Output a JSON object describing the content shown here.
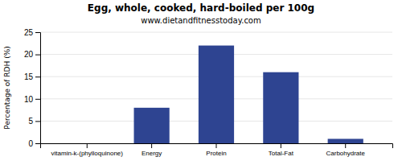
{
  "chart_data": {
    "type": "bar",
    "title": "Egg, whole, cooked, hard-boiled per 100g",
    "subtitle": "www.dietandfitnesstoday.com",
    "categories": [
      "vitamin-k-(phylloquinone)",
      "Energy",
      "Protein",
      "Total-Fat",
      "Carbohydrate"
    ],
    "values": [
      0,
      8,
      22,
      16,
      1
    ],
    "color": "#2e4491",
    "ylabel": "Percentage of RDH (%)",
    "ylim": [
      0,
      25
    ],
    "yticks": [
      0,
      5,
      10,
      15,
      20,
      25
    ],
    "grid": true
  }
}
